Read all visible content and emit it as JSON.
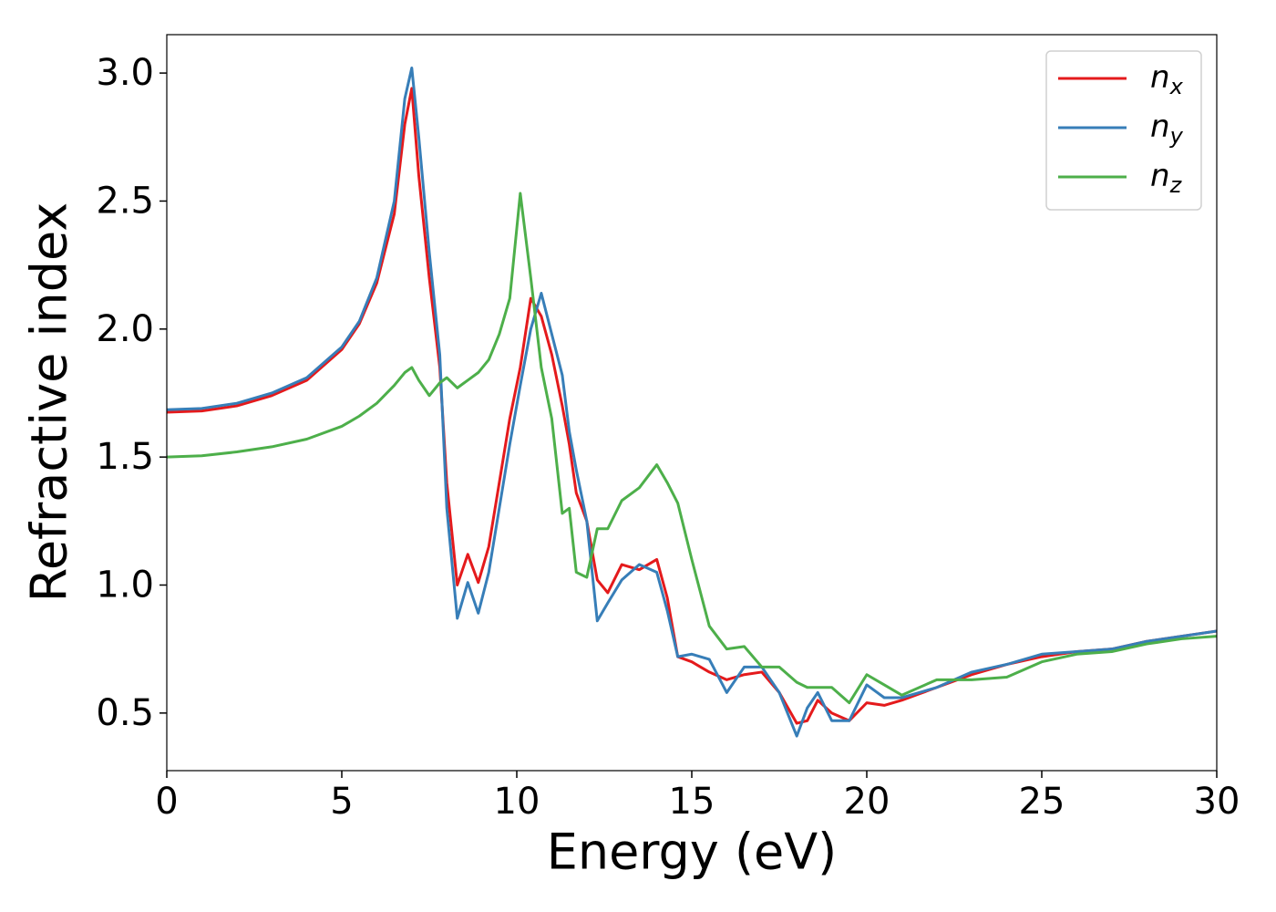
{
  "chart_data": {
    "type": "line",
    "xlabel": "Energy (eV)",
    "ylabel": "Refractive index",
    "x": [
      0,
      1,
      2,
      3,
      4,
      5,
      5.5,
      6,
      6.5,
      6.8,
      7,
      7.2,
      7.5,
      7.8,
      8,
      8.3,
      8.6,
      8.9,
      9.2,
      9.5,
      9.8,
      10.1,
      10.4,
      10.7,
      11,
      11.3,
      11.5,
      11.7,
      12,
      12.3,
      12.6,
      13,
      13.5,
      14,
      14.3,
      14.6,
      15,
      15.5,
      16,
      16.5,
      17,
      17.5,
      18,
      18.3,
      18.6,
      19,
      19.5,
      20,
      20.5,
      21,
      22,
      23,
      24,
      25,
      26,
      27,
      28,
      29,
      30
    ],
    "series": [
      {
        "name": "n_x",
        "color": "#e41a1c",
        "values": [
          1.675,
          1.68,
          1.7,
          1.74,
          1.8,
          1.92,
          2.02,
          2.18,
          2.45,
          2.8,
          2.94,
          2.6,
          2.2,
          1.85,
          1.4,
          1.0,
          1.12,
          1.01,
          1.15,
          1.4,
          1.65,
          1.85,
          2.12,
          2.05,
          1.9,
          1.7,
          1.55,
          1.36,
          1.25,
          1.02,
          0.97,
          1.08,
          1.06,
          1.1,
          0.95,
          0.72,
          0.7,
          0.66,
          0.63,
          0.65,
          0.66,
          0.58,
          0.46,
          0.47,
          0.55,
          0.5,
          0.47,
          0.54,
          0.53,
          0.55,
          0.6,
          0.65,
          0.69,
          0.72,
          0.74,
          0.75,
          0.78,
          0.8,
          0.82
        ]
      },
      {
        "name": "n_y",
        "color": "#377eb8",
        "values": [
          1.685,
          1.69,
          1.71,
          1.75,
          1.81,
          1.93,
          2.03,
          2.2,
          2.5,
          2.9,
          3.02,
          2.75,
          2.3,
          1.9,
          1.3,
          0.87,
          1.01,
          0.89,
          1.05,
          1.3,
          1.55,
          1.78,
          2.0,
          2.14,
          1.98,
          1.82,
          1.6,
          1.45,
          1.25,
          0.86,
          0.93,
          1.02,
          1.08,
          1.05,
          0.9,
          0.72,
          0.73,
          0.71,
          0.58,
          0.68,
          0.68,
          0.58,
          0.41,
          0.52,
          0.58,
          0.47,
          0.47,
          0.61,
          0.56,
          0.56,
          0.6,
          0.66,
          0.69,
          0.73,
          0.74,
          0.75,
          0.78,
          0.8,
          0.82
        ]
      },
      {
        "name": "n_z",
        "color": "#4daf4a",
        "values": [
          1.5,
          1.505,
          1.52,
          1.54,
          1.57,
          1.62,
          1.66,
          1.71,
          1.78,
          1.83,
          1.85,
          1.8,
          1.74,
          1.79,
          1.81,
          1.77,
          1.8,
          1.83,
          1.88,
          1.98,
          2.12,
          2.53,
          2.2,
          1.85,
          1.65,
          1.28,
          1.3,
          1.05,
          1.03,
          1.22,
          1.22,
          1.33,
          1.38,
          1.47,
          1.4,
          1.32,
          1.1,
          0.84,
          0.75,
          0.76,
          0.68,
          0.68,
          0.62,
          0.6,
          0.6,
          0.6,
          0.54,
          0.65,
          0.61,
          0.57,
          0.63,
          0.63,
          0.64,
          0.7,
          0.73,
          0.74,
          0.77,
          0.79,
          0.8
        ]
      }
    ],
    "xlim": [
      0,
      30
    ],
    "xticks": [
      0,
      5,
      10,
      15,
      20,
      25,
      30
    ],
    "ylim": [
      0.275,
      3.15
    ],
    "yticks": [
      0.5,
      {
        "value": 1,
        "label": "1.0"
      },
      1.5,
      {
        "value": 2,
        "label": "2.0"
      },
      2.5,
      {
        "value": 3,
        "label": "3.0"
      }
    ],
    "legend": "upper right",
    "grid": false
  }
}
